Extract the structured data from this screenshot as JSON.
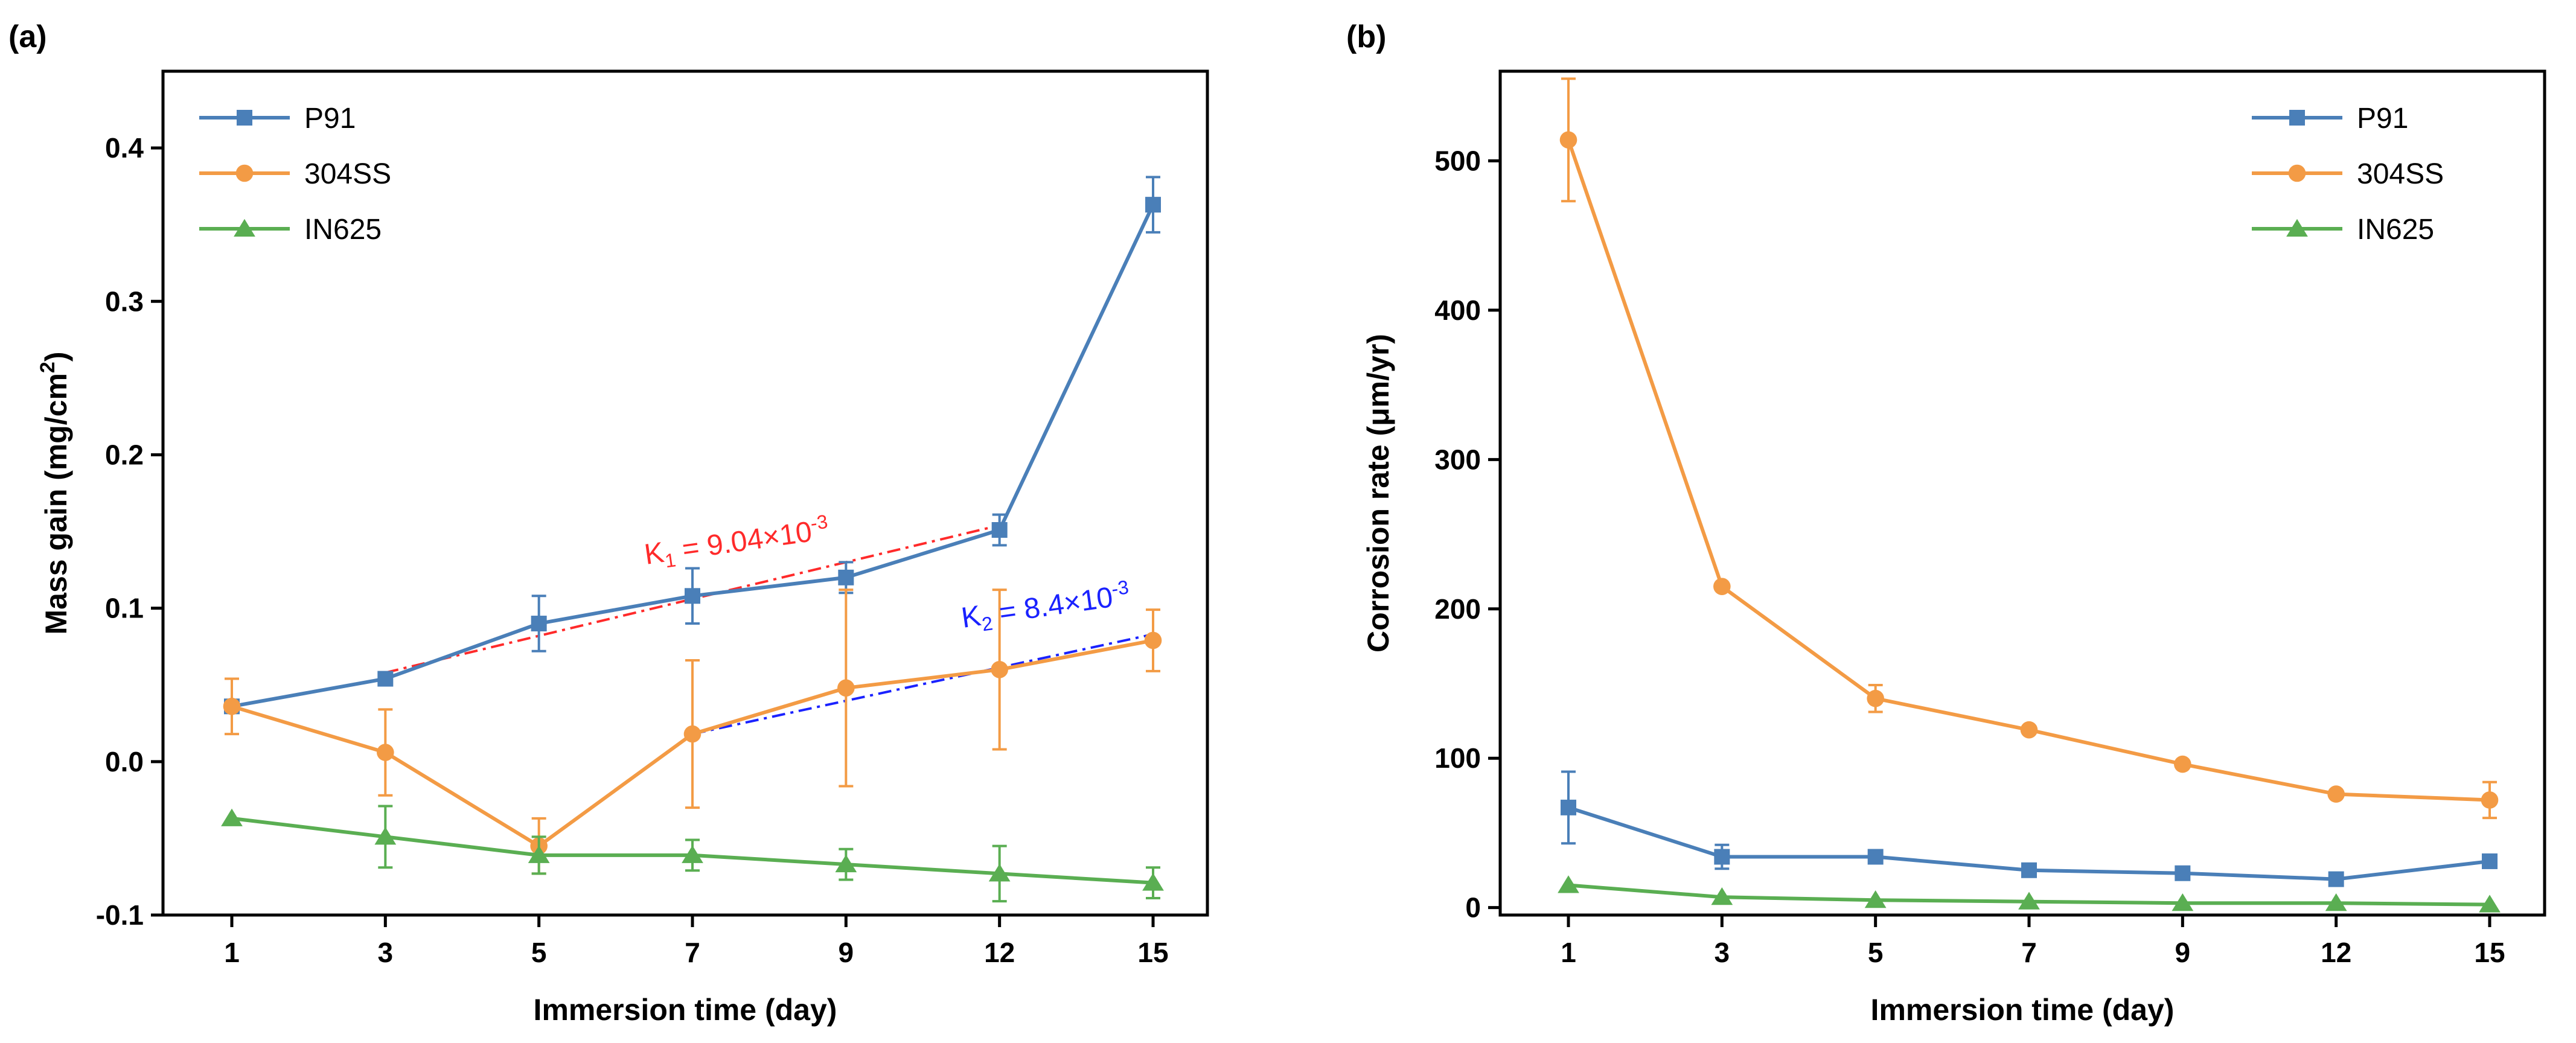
{
  "chart_data": [
    {
      "type": "line",
      "panel_label": "(a)",
      "xlabel": "Immersion time (day)",
      "ylabel_main": "Mass gain (mg/cm",
      "ylabel_sup": "2",
      "ylabel_end": ")",
      "categories": [
        "1",
        "3",
        "5",
        "7",
        "9",
        "12",
        "15"
      ],
      "ylim": [
        -0.1,
        0.45
      ],
      "yticks": [
        -0.1,
        0.0,
        0.1,
        0.2,
        0.3,
        0.4
      ],
      "ytick_labels": [
        "-0.1",
        "0.0",
        "0.1",
        "0.2",
        "0.3",
        "0.4"
      ],
      "legend_position": "top-left",
      "series": [
        {
          "name": "P91",
          "marker": "square",
          "color": "#4a7fb8",
          "values": [
            0.036,
            0.054,
            0.09,
            0.108,
            0.12,
            0.151,
            0.363
          ],
          "errors": [
            0.0,
            0.0,
            0.018,
            0.018,
            0.01,
            0.01,
            0.018
          ]
        },
        {
          "name": "304SS",
          "marker": "circle",
          "color": "#f39b45",
          "values": [
            0.036,
            0.006,
            -0.055,
            0.018,
            0.048,
            0.06,
            0.079
          ],
          "errors": [
            0.018,
            0.028,
            0.018,
            0.048,
            0.064,
            0.052,
            0.02
          ]
        },
        {
          "name": "IN625",
          "marker": "triangle",
          "color": "#5aae52",
          "values": [
            -0.037,
            -0.049,
            -0.061,
            -0.061,
            -0.067,
            -0.073,
            -0.079
          ],
          "errors": [
            0.0,
            0.02,
            0.012,
            0.01,
            0.01,
            0.018,
            0.01
          ]
        }
      ],
      "fits": [
        {
          "color": "#ff2a2a",
          "from_index": 1,
          "to_index": 5,
          "y_from": 0.058,
          "y_to": 0.154,
          "label_k": "K",
          "label_sub": "1",
          "label_eq": " = 9.04×10",
          "label_exp": "-3"
        },
        {
          "color": "#1a22ff",
          "from_index": 3,
          "to_index": 6,
          "y_from": 0.018,
          "y_to": 0.083,
          "label_k": "K",
          "label_sub": "2",
          "label_eq": " = 8.4×10",
          "label_exp": "-3"
        }
      ]
    },
    {
      "type": "line",
      "panel_label": "(b)",
      "xlabel": "Immersion time (day)",
      "ylabel": "Corrosion rate (μm/yr)",
      "categories": [
        "1",
        "3",
        "5",
        "7",
        "9",
        "12",
        "15"
      ],
      "ylim": [
        -5,
        560
      ],
      "yticks": [
        0,
        100,
        200,
        300,
        400,
        500
      ],
      "ytick_labels": [
        "0",
        "100",
        "200",
        "300",
        "400",
        "500"
      ],
      "legend_position": "top-right",
      "series": [
        {
          "name": "P91",
          "marker": "square",
          "color": "#4a7fb8",
          "values": [
            67,
            34,
            34,
            25,
            23,
            19,
            31
          ],
          "errors": [
            24,
            8,
            0,
            0,
            0,
            0,
            0
          ]
        },
        {
          "name": "304SS",
          "marker": "circle",
          "color": "#f39b45",
          "values": [
            514,
            215,
            140,
            119,
            96,
            76,
            72
          ],
          "errors": [
            41,
            0,
            9,
            0,
            0,
            0,
            12
          ]
        },
        {
          "name": "IN625",
          "marker": "triangle",
          "color": "#5aae52",
          "values": [
            15,
            7,
            5,
            4,
            3,
            3,
            2
          ],
          "errors": [
            0,
            0,
            0,
            0,
            0,
            0,
            0
          ]
        }
      ]
    }
  ]
}
